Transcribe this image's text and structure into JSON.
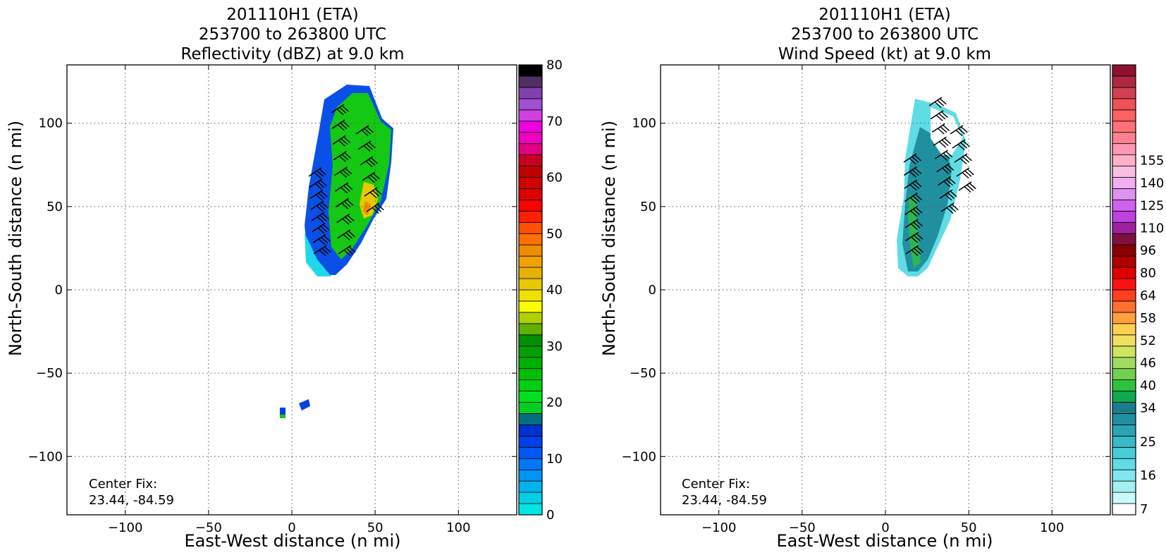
{
  "chart_data": [
    {
      "type": "heatmap",
      "title_lines": [
        "201110H1 (ETA)",
        "253700 to 263800 UTC",
        "Reflectivity (dBZ) at 9.0 km"
      ],
      "xlabel": "East-West distance (n mi)",
      "ylabel": "North-South distance (n mi)",
      "xlim": [
        -135,
        135
      ],
      "ylim": [
        -135,
        135
      ],
      "xticks": [
        -100,
        -50,
        0,
        50,
        100
      ],
      "yticks": [
        -100,
        -50,
        0,
        50,
        100
      ],
      "tick_labels": [
        "−100",
        "−50",
        "0",
        "50",
        "100"
      ],
      "grid": true,
      "annotation_lines": [
        "Center Fix:",
        "23.44, -84.59"
      ],
      "colorbar": {
        "min": 0,
        "max": 80,
        "ticks": [
          0,
          10,
          20,
          30,
          40,
          50,
          60,
          70,
          80
        ],
        "tick_labels": [
          "0",
          "10",
          "20",
          "30",
          "40",
          "50",
          "60",
          "70",
          "80"
        ],
        "colors": [
          "#00e6e6",
          "#00d0e6",
          "#00b4ee",
          "#0095f4",
          "#0078f8",
          "#0058f5",
          "#0040e8",
          "#0030d0",
          "#007080",
          "#00d020",
          "#00e020",
          "#00d010",
          "#00c000",
          "#00b000",
          "#00a000",
          "#009000",
          "#60b000",
          "#b0d000",
          "#ffff00",
          "#f0e000",
          "#e8c800",
          "#e8b000",
          "#f0a000",
          "#f08c00",
          "#ff7000",
          "#ff5000",
          "#ff2000",
          "#ff0000",
          "#e00000",
          "#d00000",
          "#c00000",
          "#c80020",
          "#e00080",
          "#f000c0",
          "#f000e0",
          "#d040e0",
          "#a050d0",
          "#8040b0",
          "#503060",
          "#000000"
        ]
      },
      "wind_barbs": true
    },
    {
      "type": "heatmap",
      "title_lines": [
        "201110H1 (ETA)",
        "253700 to 263800 UTC",
        "Wind Speed (kt) at 9.0 km"
      ],
      "xlabel": "East-West distance (n mi)",
      "ylabel": "North-South distance (n mi)",
      "xlim": [
        -135,
        135
      ],
      "ylim": [
        -135,
        135
      ],
      "xticks": [
        -100,
        -50,
        0,
        50,
        100
      ],
      "yticks": [
        -100,
        -50,
        0,
        50,
        100
      ],
      "tick_labels": [
        "−100",
        "−50",
        "0",
        "50",
        "100"
      ],
      "grid": true,
      "annotation_lines": [
        "Center Fix:",
        "23.44, -84.59"
      ],
      "colorbar": {
        "nbins": 40,
        "tick_labels": [
          "7",
          "16",
          "25",
          "34",
          "40",
          "46",
          "52",
          "58",
          "64",
          "80",
          "96",
          "110",
          "125",
          "140",
          "155"
        ],
        "tick_bins": [
          0,
          3,
          6,
          9,
          11,
          13,
          15,
          17,
          19,
          21,
          23,
          25,
          27,
          29,
          31
        ],
        "colors": [
          "#ffffff",
          "#c8fafa",
          "#a0f2f2",
          "#80e8ec",
          "#60dce4",
          "#48cdd8",
          "#38bac8",
          "#2aa5b5",
          "#2090a0",
          "#187e8c",
          "#10a850",
          "#30c040",
          "#70d050",
          "#a0dc60",
          "#d0e460",
          "#f0e060",
          "#ffd050",
          "#ffa040",
          "#ff7030",
          "#ff4020",
          "#ff1010",
          "#e00000",
          "#b00000",
          "#880000",
          "#801040",
          "#a020a0",
          "#c040e0",
          "#d060f0",
          "#e090f0",
          "#f0b0f0",
          "#f8c0e0",
          "#ffb0c8",
          "#ff98b0",
          "#ff8090",
          "#ff7078",
          "#ff6060",
          "#f05058",
          "#d04050",
          "#b02840",
          "#901030"
        ]
      },
      "wind_barbs": true
    }
  ]
}
